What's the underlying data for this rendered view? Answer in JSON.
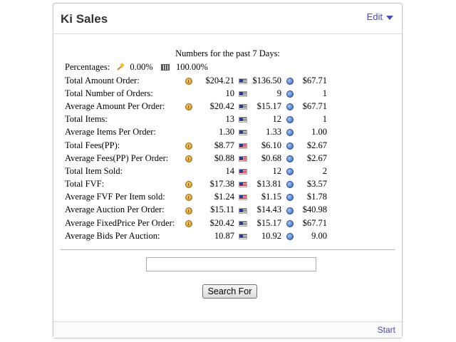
{
  "widget": {
    "title": "Ki Sales",
    "edit_label": "Edit"
  },
  "heading": "Numbers for the past 7 Days:",
  "percentages": {
    "label": "Percentages:",
    "value1": "0.00%",
    "value2": "100.00%"
  },
  "icons": {
    "col1": "coin-icon",
    "col2": "us-flag-icon",
    "col3": "globe-icon"
  },
  "rows": [
    {
      "label": "Total Amount Order:",
      "c1": "$204.21",
      "c2": "$136.50",
      "c3": "$67.71",
      "coin": true
    },
    {
      "label": "Total Number of Orders:",
      "c1": "10",
      "c2": "9",
      "c3": "1",
      "coin": false
    },
    {
      "label": "Average Amount Per Order:",
      "c1": "$20.42",
      "c2": "$15.17",
      "c3": "$67.71",
      "coin": true
    },
    {
      "label": "Total Items:",
      "c1": "13",
      "c2": "12",
      "c3": "1",
      "coin": false
    },
    {
      "label": "Average Items Per Order:",
      "c1": "1.30",
      "c2": "1.33",
      "c3": "1.00",
      "coin": false
    },
    {
      "label": "Total Fees(PP):",
      "c1": "$8.77",
      "c2": "$6.10",
      "c3": "$2.67",
      "coin": true
    },
    {
      "label": "Average Fees(PP) Per Order:",
      "c1": "$0.88",
      "c2": "$0.68",
      "c3": "$2.67",
      "coin": true
    },
    {
      "label": "Total Item Sold:",
      "c1": "14",
      "c2": "12",
      "c3": "2",
      "coin": false
    },
    {
      "label": "Total FVF:",
      "c1": "$17.38",
      "c2": "$13.81",
      "c3": "$3.57",
      "coin": true
    },
    {
      "label": "Average FVF Per Item sold:",
      "c1": "$1.24",
      "c2": "$1.15",
      "c3": "$1.78",
      "coin": true
    },
    {
      "label": "Average Auction Per Order:",
      "c1": "$15.11",
      "c2": "$14.43",
      "c3": "$40.98",
      "coin": true
    },
    {
      "label": "Average FixedPrice Per Order:",
      "c1": "$20.42",
      "c2": "$15.17",
      "c3": "$67.71",
      "coin": true
    },
    {
      "label": "Average Bids Per Auction:",
      "c1": "10.87",
      "c2": "10.92",
      "c3": "9.00",
      "coin": false
    }
  ],
  "search": {
    "value": "",
    "button_label": "Search For"
  },
  "footer": {
    "start_label": "Start"
  }
}
